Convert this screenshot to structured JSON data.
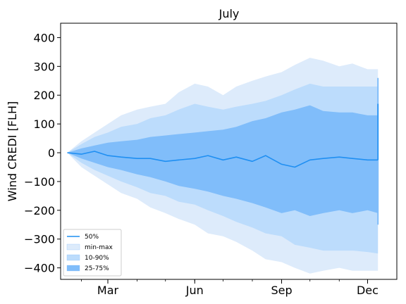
{
  "chart_data": {
    "type": "area",
    "title": "July",
    "xlabel": "",
    "ylabel": "Wind CREDI [FLH]",
    "x_axis_type": "date",
    "xlim": [
      "2023-01-10",
      "2024-01-01"
    ],
    "x_ticks": [
      {
        "label": "Mar",
        "date": "2023-03-01"
      },
      {
        "label": "Jun",
        "date": "2023-06-01"
      },
      {
        "label": "Sep",
        "date": "2023-09-01"
      },
      {
        "label": "Dec",
        "date": "2023-12-01"
      }
    ],
    "ylim": [
      -440,
      450
    ],
    "y_ticks": [
      -400,
      -300,
      -200,
      -100,
      0,
      100,
      200,
      300,
      400
    ],
    "grid": false,
    "legend_position": "lower-left",
    "colors": {
      "median": "#1f8ff2",
      "min_max": "#ddebfb",
      "p10_90": "#bcdcfc",
      "p25_75": "#80bdfa"
    },
    "x": [
      "2023-01-17",
      "2023-02-01",
      "2023-02-15",
      "2023-03-01",
      "2023-03-15",
      "2023-04-01",
      "2023-04-15",
      "2023-05-01",
      "2023-05-15",
      "2023-06-01",
      "2023-06-15",
      "2023-07-01",
      "2023-07-15",
      "2023-08-01",
      "2023-08-15",
      "2023-09-01",
      "2023-09-15",
      "2023-10-01",
      "2023-10-15",
      "2023-11-01",
      "2023-11-15",
      "2023-12-01",
      "2023-12-12"
    ],
    "series": [
      {
        "name": "50%",
        "kind": "line",
        "values": [
          0,
          -5,
          5,
          -10,
          -15,
          -20,
          -20,
          -30,
          -25,
          -20,
          -10,
          -25,
          -15,
          -30,
          -10,
          -40,
          -50,
          -25,
          -20,
          -15,
          -20,
          -25,
          -25
        ]
      },
      {
        "name": "min-max",
        "kind": "band",
        "upper": [
          0,
          40,
          70,
          100,
          130,
          150,
          160,
          170,
          210,
          240,
          230,
          200,
          230,
          250,
          265,
          280,
          305,
          330,
          320,
          300,
          310,
          290,
          290
        ],
        "lower": [
          0,
          -50,
          -80,
          -110,
          -140,
          -160,
          -190,
          -210,
          -230,
          -250,
          -280,
          -290,
          -310,
          -340,
          -370,
          -380,
          -400,
          -420,
          -410,
          -400,
          -410,
          -410,
          -410
        ]
      },
      {
        "name": "10-90%",
        "kind": "band",
        "upper": [
          0,
          30,
          55,
          70,
          90,
          100,
          120,
          130,
          150,
          170,
          160,
          150,
          160,
          170,
          180,
          200,
          220,
          240,
          230,
          230,
          230,
          230,
          230
        ],
        "lower": [
          0,
          -35,
          -60,
          -80,
          -100,
          -120,
          -140,
          -150,
          -170,
          -180,
          -200,
          -220,
          -240,
          -260,
          -280,
          -290,
          -320,
          -330,
          -340,
          -340,
          -340,
          -345,
          -350
        ]
      },
      {
        "name": "25-75%",
        "kind": "band",
        "upper": [
          0,
          15,
          25,
          35,
          40,
          45,
          55,
          60,
          65,
          70,
          75,
          80,
          90,
          110,
          120,
          140,
          150,
          165,
          145,
          140,
          140,
          130,
          130
        ],
        "lower": [
          0,
          -20,
          -35,
          -50,
          -60,
          -75,
          -85,
          -100,
          -115,
          -125,
          -135,
          -150,
          -160,
          -175,
          -190,
          -210,
          -200,
          -220,
          -210,
          -200,
          -210,
          -200,
          -210
        ]
      }
    ],
    "end_spike": {
      "upper": 260,
      "lower": -250,
      "median_top": 170
    }
  }
}
